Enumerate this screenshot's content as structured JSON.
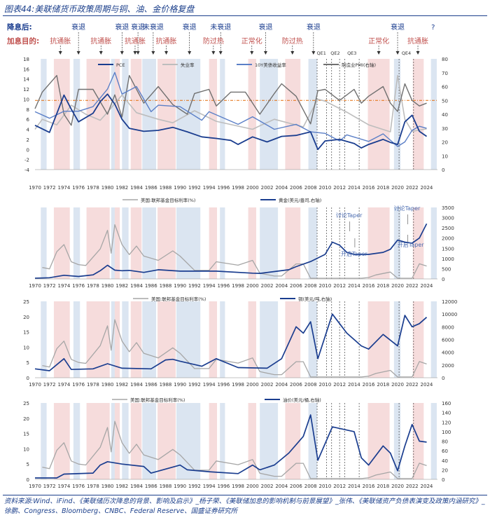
{
  "title": "图表44:美联储货币政策周期与铜、油、金价格复盘",
  "row_labels": {
    "cut": "降息后:",
    "hike": "加息目的:"
  },
  "cycle_labels": {
    "recession": [
      "衰退",
      "衰退",
      "衰退",
      "未衰退",
      "衰退",
      "未衰退",
      "衰退",
      "衰退",
      "衰退"
    ],
    "hike": [
      "抗通胀",
      "抗通胀",
      "抗通胀",
      "抗通胀",
      "防过热",
      "正常化",
      "防过热",
      "正常化",
      "抗通胀"
    ]
  },
  "question_mark": "?",
  "qe_labels": [
    "QE1",
    "QE2",
    "QE3",
    "QE4"
  ],
  "colors": {
    "navy": "#1a3d8f",
    "gray": "#a6a6a6",
    "darkgray": "#6f6f6f",
    "blue_band": "#dbe5f1",
    "pink_band": "#f6dcdc",
    "orange": "#e46c0a",
    "hike_text": "#c0504d"
  },
  "chart_data": [
    {
      "type": "line",
      "title": "",
      "x_ticks": [
        "1970",
        "1972",
        "1974",
        "1976",
        "1978",
        "1980",
        "1982",
        "1984",
        "1986",
        "1988",
        "1990",
        "1992",
        "1994",
        "1996",
        "1998",
        "2000",
        "2002",
        "2004",
        "2006",
        "2008",
        "2010",
        "2012",
        "2014",
        "2016",
        "2018",
        "2020",
        "2022",
        "2024"
      ],
      "ylim": [
        -4,
        18
      ],
      "y_ticks": [
        "-4",
        "-2",
        "0",
        "2",
        "4",
        "6",
        "8",
        "10",
        "12",
        "14",
        "16",
        "18"
      ],
      "y2lim": [
        0,
        80
      ],
      "y2_ticks": [
        "0",
        "10",
        "20",
        "30",
        "40",
        "50",
        "60",
        "70",
        "80"
      ],
      "reference_line": 50,
      "series": [
        {
          "name": "PCE",
          "axis": "left",
          "x": [
            1970,
            1972,
            1974,
            1975,
            1976,
            1978,
            1979,
            1980,
            1981,
            1982,
            1983,
            1985,
            1987,
            1989,
            1991,
            1993,
            1995,
            1997,
            1998,
            2000,
            2002,
            2004,
            2006,
            2008,
            2009,
            2010,
            2012,
            2014,
            2015,
            2016,
            2018,
            2019,
            2020,
            2021,
            2022,
            2023,
            2024
          ],
          "values": [
            4.8,
            3.4,
            10.8,
            8,
            5.5,
            7.2,
            9.5,
            11,
            9,
            6,
            4.2,
            3.6,
            3.8,
            4.4,
            3.5,
            2.5,
            2.2,
            1.8,
            1,
            2.5,
            1.5,
            2.6,
            2.8,
            3.5,
            0,
            1.7,
            2,
            1.2,
            0.3,
            1,
            2,
            1.4,
            1,
            5.5,
            6.8,
            3.6,
            2.6
          ]
        },
        {
          "name": "失业率",
          "axis": "left",
          "x": [
            1970,
            1971,
            1973,
            1975,
            1977,
            1979,
            1980,
            1982,
            1984,
            1987,
            1989,
            1992,
            1995,
            2000,
            2001,
            2003,
            2007,
            2009,
            2010,
            2013,
            2016,
            2019,
            2020,
            2021,
            2022,
            2024
          ],
          "values": [
            4,
            6,
            4.9,
            8.8,
            7,
            5.8,
            7.4,
            10.8,
            7.3,
            6,
            5.3,
            7.7,
            5.6,
            4,
            4.7,
            6,
            4.5,
            10,
            9.6,
            7.4,
            4.9,
            3.5,
            14.7,
            6,
            3.6,
            4.1
          ]
        },
        {
          "name": "10Y美债收益率",
          "axis": "left",
          "x": [
            1970,
            1972,
            1974,
            1976,
            1978,
            1980,
            1981,
            1982,
            1984,
            1986,
            1987,
            1990,
            1993,
            1994,
            1998,
            2000,
            2003,
            2006,
            2008,
            2010,
            2012,
            2013,
            2016,
            2018,
            2020,
            2021,
            2022,
            2023,
            2024
          ],
          "values": [
            7.5,
            6.2,
            7.6,
            7.6,
            8.5,
            12,
            15.3,
            11,
            12.5,
            7.5,
            8.8,
            8.5,
            5.8,
            7.5,
            5,
            6.5,
            4,
            5,
            3.5,
            3.2,
            1.7,
            2.9,
            1.6,
            3.1,
            0.6,
            1.5,
            3.8,
            4.6,
            4.2
          ]
        },
        {
          "name": "制造业PMI(右轴)",
          "axis": "right",
          "x": [
            1970,
            1971,
            1973,
            1974,
            1975,
            1976,
            1978,
            1980,
            1981,
            1982,
            1983,
            1985,
            1987,
            1989,
            1991,
            1992,
            1994,
            1995,
            1997,
            1999,
            2001,
            2003,
            2004,
            2006,
            2008,
            2009,
            2010,
            2012,
            2014,
            2015,
            2016,
            2018,
            2019,
            2020,
            2021,
            2022,
            2023,
            2024
          ],
          "values": [
            44,
            56,
            68,
            40,
            32,
            58,
            58,
            40,
            54,
            38,
            68,
            48,
            60,
            47,
            40,
            55,
            58,
            46,
            56,
            56,
            40,
            55,
            62,
            53,
            33,
            57,
            58,
            50,
            58,
            48,
            53,
            60,
            48,
            42,
            62,
            50,
            46,
            48
          ]
        }
      ]
    },
    {
      "type": "line",
      "title": "",
      "x_ticks": [
        "1970",
        "1972",
        "1974",
        "1976",
        "1978",
        "1980",
        "1982",
        "1984",
        "1986",
        "1988",
        "1990",
        "1992",
        "1994",
        "1996",
        "1998",
        "2000",
        "2002",
        "2004",
        "2006",
        "2008",
        "2010",
        "2012",
        "2014",
        "2016",
        "2018",
        "2020",
        "2022",
        "2024"
      ],
      "ylim": [
        0,
        3500
      ],
      "y_ticks": [
        "0",
        "500",
        "1000",
        "1500",
        "2000",
        "2500",
        "3000",
        "3500"
      ],
      "series": [
        {
          "name": "美国:联邦基金目标利率(%)",
          "axis": "left",
          "x": [
            1971,
            1972,
            1973,
            1974,
            1975,
            1976,
            1977,
            1979,
            1980,
            1980.5,
            1981,
            1982,
            1983,
            1984,
            1985,
            1987,
            1989,
            1990,
            1992,
            1993,
            1994,
            1995,
            1998,
            2000,
            2001,
            2003,
            2004,
            2006,
            2007,
            2008,
            2015,
            2016,
            2017,
            2019,
            2020,
            2022,
            2023,
            2024
          ],
          "values": [
            4,
            3.5,
            9.5,
            12,
            6,
            5,
            4.7,
            10.5,
            17,
            9,
            19,
            12,
            8.5,
            11.5,
            8,
            6.5,
            9.8,
            8,
            3,
            3,
            3,
            6,
            4.8,
            6.5,
            2,
            1,
            1,
            5.25,
            5.25,
            0.25,
            0.25,
            0.5,
            1.4,
            2.4,
            0.25,
            0.25,
            5.3,
            4.5
          ]
        },
        {
          "name": "黄金(美元/盎司,右轴)",
          "axis": "left",
          "x": [
            1970,
            1972,
            1974,
            1976,
            1978,
            1979,
            1980,
            1981,
            1982,
            1983,
            1985,
            1987,
            1990,
            1995,
            2000,
            2001,
            2003,
            2005,
            2006,
            2008,
            2010,
            2011,
            2012,
            2013,
            2014,
            2016,
            2018,
            2019,
            2020,
            2021,
            2022,
            2023,
            2024
          ],
          "values": [
            35,
            60,
            180,
            120,
            200,
            400,
            670,
            430,
            400,
            420,
            320,
            450,
            380,
            380,
            280,
            270,
            360,
            450,
            600,
            850,
            1200,
            1800,
            1650,
            1300,
            1200,
            1200,
            1300,
            1450,
            1900,
            1800,
            1750,
            2000,
            2700
          ]
        }
      ],
      "annotations": [
        "讨论Taper",
        "开启Taper",
        "讨论Taper",
        "开启Taper"
      ]
    },
    {
      "type": "line",
      "title": "",
      "x_ticks": [
        "1970",
        "1972",
        "1974",
        "1976",
        "1978",
        "1980",
        "1982",
        "1984",
        "1986",
        "1988",
        "1990",
        "1992",
        "1994",
        "1996",
        "1998",
        "2000",
        "2002",
        "2004",
        "2006",
        "2008",
        "2010",
        "2012",
        "2014",
        "2016",
        "2018",
        "2020",
        "2022",
        "2024"
      ],
      "ylim": [
        0,
        25
      ],
      "y_ticks": [
        "0",
        "5",
        "10",
        "15",
        "20",
        "25"
      ],
      "y2lim": [
        0,
        12000
      ],
      "y2_ticks": [
        "0",
        "2000",
        "4000",
        "6000",
        "8000",
        "10000",
        "12000"
      ],
      "series": [
        {
          "name": "美国:联邦基金目标利率(%)",
          "axis": "left",
          "x": [
            1971,
            1972,
            1973,
            1974,
            1975,
            1976,
            1977,
            1979,
            1980,
            1980.5,
            1981,
            1982,
            1983,
            1984,
            1985,
            1987,
            1989,
            1990,
            1992,
            1993,
            1994,
            1995,
            1998,
            2000,
            2001,
            2003,
            2004,
            2006,
            2007,
            2008,
            2015,
            2016,
            2017,
            2019,
            2020,
            2022,
            2023,
            2024
          ],
          "values": [
            4,
            3.5,
            9.5,
            12,
            6,
            5,
            4.7,
            10.5,
            17,
            9,
            19,
            12,
            8.5,
            11.5,
            8,
            6.5,
            9.8,
            8,
            3,
            3,
            3,
            6,
            4.8,
            6.5,
            2,
            1,
            1,
            5.25,
            5.25,
            0.25,
            0.25,
            0.5,
            1.4,
            2.4,
            0.25,
            0.25,
            5.3,
            4.5
          ]
        },
        {
          "name": "铜(美元/吨,右轴)",
          "axis": "right",
          "x": [
            1970,
            1972,
            1974,
            1975,
            1978,
            1980,
            1982,
            1986,
            1988,
            1989,
            1990,
            1993,
            1995,
            1998,
            2002,
            2004,
            2006,
            2007,
            2008,
            2009,
            2011,
            2013,
            2015,
            2016,
            2018,
            2020,
            2021,
            2022,
            2023,
            2024
          ],
          "values": [
            1400,
            1100,
            3000,
            1300,
            1400,
            2200,
            1500,
            1400,
            2800,
            2900,
            2600,
            1800,
            3000,
            1600,
            1500,
            3000,
            8000,
            7000,
            8800,
            3000,
            10000,
            7000,
            5000,
            4500,
            6800,
            5000,
            9800,
            8000,
            8500,
            9500
          ]
        }
      ]
    },
    {
      "type": "line",
      "title": "",
      "x_ticks": [
        "1970",
        "1972",
        "1974",
        "1976",
        "1978",
        "1980",
        "1982",
        "1984",
        "1986",
        "1988",
        "1990",
        "1992",
        "1994",
        "1996",
        "1998",
        "2000",
        "2002",
        "2004",
        "2006",
        "2008",
        "2010",
        "2012",
        "2014",
        "2016",
        "2018",
        "2020",
        "2022",
        "2024"
      ],
      "ylim": [
        0,
        25
      ],
      "y_ticks": [
        "0",
        "5",
        "10",
        "15",
        "20",
        "25"
      ],
      "y2lim": [
        0,
        160
      ],
      "y2_ticks": [
        "0",
        "20",
        "40",
        "60",
        "80",
        "100",
        "120",
        "140",
        "160"
      ],
      "series": [
        {
          "name": "美国:联邦基金目标利率(%)",
          "axis": "left",
          "x": [
            1971,
            1972,
            1973,
            1974,
            1975,
            1976,
            1977,
            1979,
            1980,
            1980.5,
            1981,
            1982,
            1983,
            1984,
            1985,
            1987,
            1989,
            1990,
            1992,
            1993,
            1994,
            1995,
            1998,
            2000,
            2001,
            2003,
            2004,
            2006,
            2007,
            2008,
            2015,
            2016,
            2017,
            2019,
            2020,
            2022,
            2023,
            2024
          ],
          "values": [
            4,
            3.5,
            9.5,
            12,
            6,
            5,
            4.7,
            10.5,
            17,
            9,
            19,
            12,
            8.5,
            11.5,
            8,
            6.5,
            9.8,
            8,
            3,
            3,
            3,
            6,
            4.8,
            6.5,
            2,
            1,
            1,
            5.25,
            5.25,
            0.25,
            0.25,
            0.5,
            1.4,
            2.4,
            0.25,
            0.25,
            5.3,
            4.5
          ]
        },
        {
          "name": "油价(美元/桶,右轴)",
          "axis": "right",
          "x": [
            1970,
            1973,
            1974,
            1978,
            1979,
            1980,
            1982,
            1985,
            1986,
            1990,
            1991,
            1994,
            1998,
            2000,
            2001,
            2003,
            2005,
            2007,
            2008,
            2009,
            2011,
            2014,
            2015,
            2016,
            2018,
            2019,
            2020,
            2021,
            2022,
            2023,
            2024
          ],
          "values": [
            3,
            3,
            11,
            13,
            30,
            37,
            32,
            27,
            13,
            30,
            20,
            16,
            12,
            30,
            20,
            30,
            55,
            90,
            135,
            40,
            110,
            100,
            45,
            30,
            70,
            55,
            18,
            70,
            115,
            80,
            78
          ]
        }
      ]
    }
  ],
  "source_text": "资料来源:Wind、iFind、《美联储历次降息的背景、影响及启示》_杨子荣、《美联储加息的影响机制与前景展望》_张伟、《美联储资产负债表演变及政策内涵研究》_徐鹏、Congress、Bloomberg、CNBC、Federal Reserve、国盛证券研究所"
}
